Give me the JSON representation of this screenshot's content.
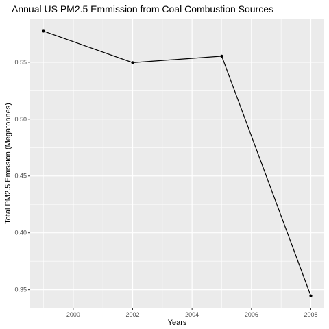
{
  "chart_data": {
    "type": "line",
    "title": "Annual US PM2.5 Emmission from Coal Combustion Sources",
    "xlabel": "Years",
    "ylabel": "Total PM2.5 Emission (Megatonnes)",
    "x": [
      1999,
      2002,
      2005,
      2008
    ],
    "y": [
      0.5774,
      0.5497,
      0.5554,
      0.3445
    ],
    "xlim": [
      1998.55,
      2008.45
    ],
    "ylim": [
      0.3335,
      0.5885
    ],
    "xticks": [
      2000,
      2002,
      2004,
      2006,
      2008
    ],
    "xtick_labels": [
      "2000",
      "2002",
      "2004",
      "2006",
      "2008"
    ],
    "yticks": [
      0.35,
      0.4,
      0.45,
      0.5,
      0.55
    ],
    "ytick_labels": [
      "0.35",
      "0.40",
      "0.45",
      "0.50",
      "0.55"
    ],
    "grid": true,
    "legend": "none",
    "colors": {
      "panel": "#ebebeb",
      "grid": "#ffffff",
      "line": "#000000",
      "point": "#000000",
      "tick_text": "#4d4d4d",
      "tick_mark": "#333333"
    }
  }
}
